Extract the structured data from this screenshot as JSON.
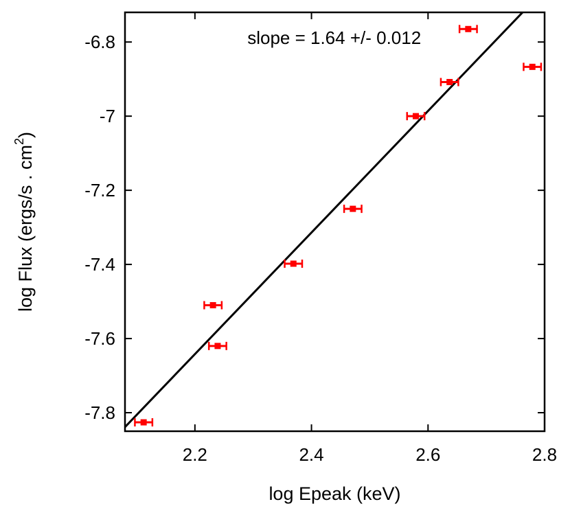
{
  "chart_data": {
    "type": "scatter",
    "title": "",
    "xlabel": "log Epeak (keV)",
    "ylabel_main": "log Flux (ergs/s . cm",
    "ylabel_sup": "2",
    "ylabel_close": ")",
    "xlim": [
      2.08,
      2.8
    ],
    "ylim": [
      -7.85,
      -6.72
    ],
    "x_ticks": [
      2.2,
      2.4,
      2.6,
      2.8
    ],
    "x_tick_labels": [
      "2.2",
      "2.4",
      "2.6",
      "2.8"
    ],
    "y_ticks": [
      -6.8,
      -7.0,
      -7.2,
      -7.4,
      -7.6,
      -7.8
    ],
    "y_tick_labels": [
      "-6.8",
      "-7",
      "-7.2",
      "-7.4",
      "-7.6",
      "-7.8"
    ],
    "grid": false,
    "legend": null,
    "series": [
      {
        "kind": "points_with_xerr",
        "color": "#ff0000",
        "points": [
          {
            "x": 2.112,
            "y": -7.826,
            "xerr": 0.015
          },
          {
            "x": 2.231,
            "y": -7.51,
            "xerr": 0.015
          },
          {
            "x": 2.239,
            "y": -7.62,
            "xerr": 0.015
          },
          {
            "x": 2.369,
            "y": -7.398,
            "xerr": 0.015
          },
          {
            "x": 2.471,
            "y": -7.25,
            "xerr": 0.015
          },
          {
            "x": 2.579,
            "y": -7.0,
            "xerr": 0.015
          },
          {
            "x": 2.637,
            "y": -6.908,
            "xerr": 0.015
          },
          {
            "x": 2.669,
            "y": -6.765,
            "xerr": 0.015
          },
          {
            "x": 2.779,
            "y": -6.867,
            "xerr": 0.015
          }
        ]
      },
      {
        "kind": "fit_line",
        "color": "#000000",
        "slope": 1.64,
        "intercept": -11.25
      }
    ],
    "annotations": [
      {
        "text": "slope = 1.64 +/- 0.012",
        "x": 2.29,
        "y": -6.805
      }
    ]
  }
}
